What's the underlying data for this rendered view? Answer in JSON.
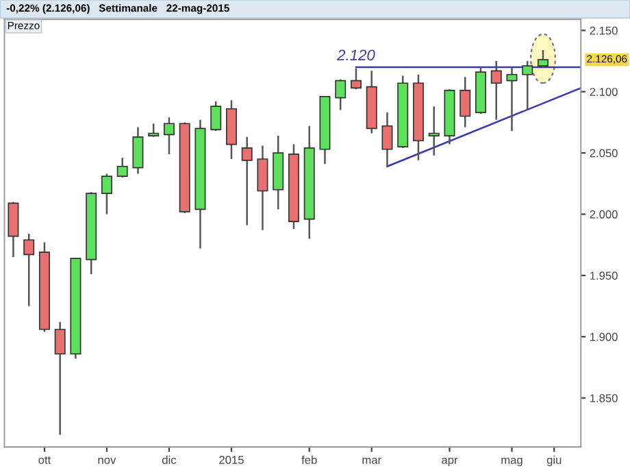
{
  "chart_data": {
    "type": "candlestick",
    "title": "-0,22% (2.126,06)   Settimanale   22-mag-2015",
    "x": [
      "2014-09-26",
      "2014-10-03",
      "2014-10-10",
      "2014-10-17",
      "2014-10-24",
      "2014-10-31",
      "2014-11-07",
      "2014-11-14",
      "2014-11-21",
      "2014-11-28",
      "2014-12-05",
      "2014-12-12",
      "2014-12-19",
      "2014-12-26",
      "2015-01-02",
      "2015-01-09",
      "2015-01-16",
      "2015-01-23",
      "2015-01-30",
      "2015-02-06",
      "2015-02-13",
      "2015-02-20",
      "2015-02-27",
      "2015-03-06",
      "2015-03-13",
      "2015-03-20",
      "2015-03-27",
      "2015-04-03",
      "2015-04-10",
      "2015-04-17",
      "2015-04-24",
      "2015-05-01",
      "2015-05-08",
      "2015-05-15",
      "2015-05-22"
    ],
    "ohlc": [
      [
        2009,
        2010,
        1965,
        1982
      ],
      [
        1979,
        1984,
        1925,
        1967
      ],
      [
        1969,
        1977,
        1904,
        1906
      ],
      [
        1906,
        1912,
        1820,
        1886
      ],
      [
        1886,
        1964,
        1882,
        1964
      ],
      [
        1963,
        2018,
        1951,
        2017
      ],
      [
        2017,
        2033,
        2000,
        2031
      ],
      [
        2031,
        2046,
        2030,
        2039
      ],
      [
        2038,
        2071,
        2033,
        2063
      ],
      [
        2064,
        2074,
        2063,
        2066
      ],
      [
        2065,
        2079,
        2049,
        2074
      ],
      [
        2074,
        2075,
        2001,
        2002
      ],
      [
        2004,
        2077,
        1972,
        2070
      ],
      [
        2069,
        2092,
        2068,
        2088
      ],
      [
        2086,
        2093,
        2045,
        2057
      ],
      [
        2054,
        2063,
        1991,
        2044
      ],
      [
        2045,
        2056,
        1987,
        2019
      ],
      [
        2020,
        2064,
        2004,
        2050
      ],
      [
        2049,
        2057,
        1988,
        1994
      ],
      [
        1996,
        2072,
        1980,
        2054
      ],
      [
        2053,
        2096,
        2041,
        2096
      ],
      [
        2095,
        2110,
        2085,
        2109
      ],
      [
        2109,
        2119,
        2102,
        2103
      ],
      [
        2104,
        2117,
        2066,
        2070
      ],
      [
        2072,
        2083,
        2039,
        2053
      ],
      [
        2055,
        2113,
        2054,
        2107
      ],
      [
        2107,
        2114,
        2044,
        2060
      ],
      [
        2064,
        2088,
        2048,
        2066
      ],
      [
        2064,
        2102,
        2057,
        2101
      ],
      [
        2101,
        2112,
        2071,
        2080
      ],
      [
        2083,
        2120,
        2082,
        2116
      ],
      [
        2117,
        2125,
        2077,
        2107
      ],
      [
        2109,
        2120,
        2068,
        2114
      ],
      [
        2114,
        2125,
        2085,
        2121
      ],
      [
        2121,
        2134,
        2120,
        2126.06
      ]
    ],
    "colors": [
      "#e87070",
      "#e87070",
      "#e87070",
      "#e87070",
      "#5ee05e",
      "#5ee05e",
      "#5ee05e",
      "#5ee05e",
      "#5ee05e",
      "#5ee05e",
      "#5ee05e",
      "#e87070",
      "#5ee05e",
      "#5ee05e",
      "#e87070",
      "#e87070",
      "#e87070",
      "#5ee05e",
      "#e87070",
      "#5ee05e",
      "#5ee05e",
      "#5ee05e",
      "#e87070",
      "#e87070",
      "#e87070",
      "#5ee05e",
      "#e87070",
      "#5ee05e",
      "#5ee05e",
      "#e87070",
      "#5ee05e",
      "#e87070",
      "#5ee05e",
      "#5ee05e",
      "#5ee05e"
    ],
    "series": [
      {
        "type": "line",
        "color": "#3a3ab0",
        "x": [
          "2015-02-27",
          "2015-06-08"
        ],
        "values": [
          2120,
          2120
        ]
      },
      {
        "type": "line",
        "color": "#3a3ab0",
        "x": [
          "2015-03-13",
          "2015-06-08"
        ],
        "values": [
          2039,
          2103
        ]
      }
    ],
    "annotations": [
      "Prezzo",
      {
        "text": "2.120",
        "x": "2015-02-27",
        "y": 2120
      },
      "2.126,06"
    ],
    "xlim": [
      "2014-09-22",
      "2015-06-08"
    ],
    "xticks": [
      {
        "value": "2014-10-10",
        "label": "ott"
      },
      {
        "value": "2014-11-07",
        "label": "nov"
      },
      {
        "value": "2014-12-05",
        "label": "dic"
      },
      {
        "value": "2015-01-02",
        "label": "2015"
      },
      {
        "value": "2015-02-06",
        "label": "feb"
      },
      {
        "value": "2015-03-06",
        "label": "mar"
      },
      {
        "value": "2015-04-10",
        "label": "apr"
      },
      {
        "value": "2015-05-08",
        "label": "mag"
      },
      {
        "value": "2015-05-27",
        "label": "giu"
      }
    ],
    "ylim": [
      1810,
      2159
    ],
    "yticks": [
      {
        "value": 1850,
        "label": "1.850"
      },
      {
        "value": 1900,
        "label": "1.900"
      },
      {
        "value": 1950,
        "label": "1.950"
      },
      {
        "value": 2000,
        "label": "2.000"
      },
      {
        "value": 2050,
        "label": "2.050"
      },
      {
        "value": 2100,
        "label": "2.100"
      },
      {
        "value": 2150,
        "label": "2.150"
      }
    ]
  }
}
